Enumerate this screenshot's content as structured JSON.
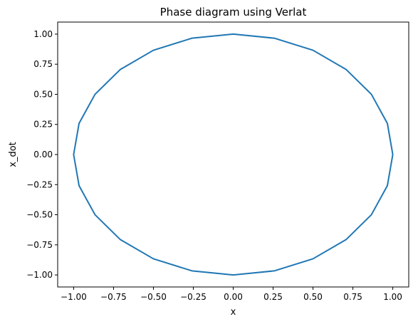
{
  "chart_data": {
    "type": "line",
    "title": "Phase diagram using Verlat",
    "xlabel": "x",
    "ylabel": "x_dot",
    "xlim": [
      -1.1,
      1.1
    ],
    "ylim": [
      -1.1,
      1.1
    ],
    "xticks": [
      -1.0,
      -0.75,
      -0.5,
      -0.25,
      0.0,
      0.25,
      0.5,
      0.75,
      1.0
    ],
    "yticks": [
      -1.0,
      -0.75,
      -0.5,
      -0.25,
      0.0,
      0.25,
      0.5,
      0.75,
      1.0
    ],
    "xtick_labels": [
      "−1.00",
      "−0.75",
      "−0.50",
      "−0.25",
      "0.00",
      "0.25",
      "0.50",
      "0.75",
      "1.00"
    ],
    "ytick_labels": [
      "−1.00",
      "−0.75",
      "−0.50",
      "−0.25",
      "0.00",
      "0.25",
      "0.50",
      "0.75",
      "1.00"
    ],
    "grid": false,
    "series": [
      {
        "color": "#1f77b4",
        "shape": "closed curve",
        "x": [
          1.0,
          0.966,
          0.866,
          0.707,
          0.5,
          0.259,
          0.0,
          -0.259,
          -0.5,
          -0.707,
          -0.866,
          -0.966,
          -1.0,
          -0.966,
          -0.866,
          -0.707,
          -0.5,
          -0.259,
          0.0,
          0.259,
          0.5,
          0.707,
          0.866,
          0.966,
          1.0
        ],
        "y": [
          0.0,
          0.259,
          0.5,
          0.707,
          0.866,
          0.966,
          1.0,
          0.966,
          0.866,
          0.707,
          0.5,
          0.259,
          0.0,
          -0.259,
          -0.5,
          -0.707,
          -0.866,
          -0.966,
          -1.0,
          -0.966,
          -0.866,
          -0.707,
          -0.5,
          -0.259,
          0.0
        ]
      }
    ]
  }
}
